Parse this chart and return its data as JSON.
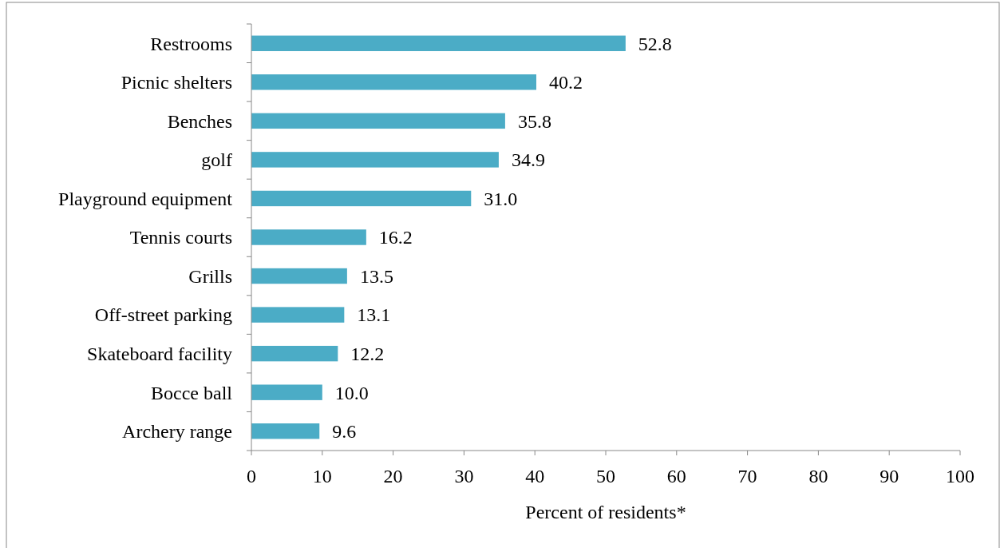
{
  "chart_data": {
    "type": "bar",
    "orientation": "horizontal",
    "xlabel": "Percent of residents*",
    "categories": [
      "Restrooms",
      "Picnic shelters",
      "Benches",
      "golf",
      "Playground equipment",
      "Tennis courts",
      "Grills",
      "Off-street parking",
      "Skateboard facility",
      "Bocce ball",
      "Archery range"
    ],
    "values": [
      52.8,
      40.2,
      35.8,
      34.9,
      31.0,
      16.2,
      13.5,
      13.1,
      12.2,
      10.0,
      9.6
    ],
    "value_labels": [
      "52.8",
      "40.2",
      "35.8",
      "34.9",
      "31.0",
      "16.2",
      "13.5",
      "13.1",
      "12.2",
      "10.0",
      "9.6"
    ],
    "color": "#4bacc6",
    "xlim": [
      0,
      100
    ],
    "xticks": [
      0,
      10,
      20,
      30,
      40,
      50,
      60,
      70,
      80,
      90,
      100
    ],
    "grid": false
  }
}
